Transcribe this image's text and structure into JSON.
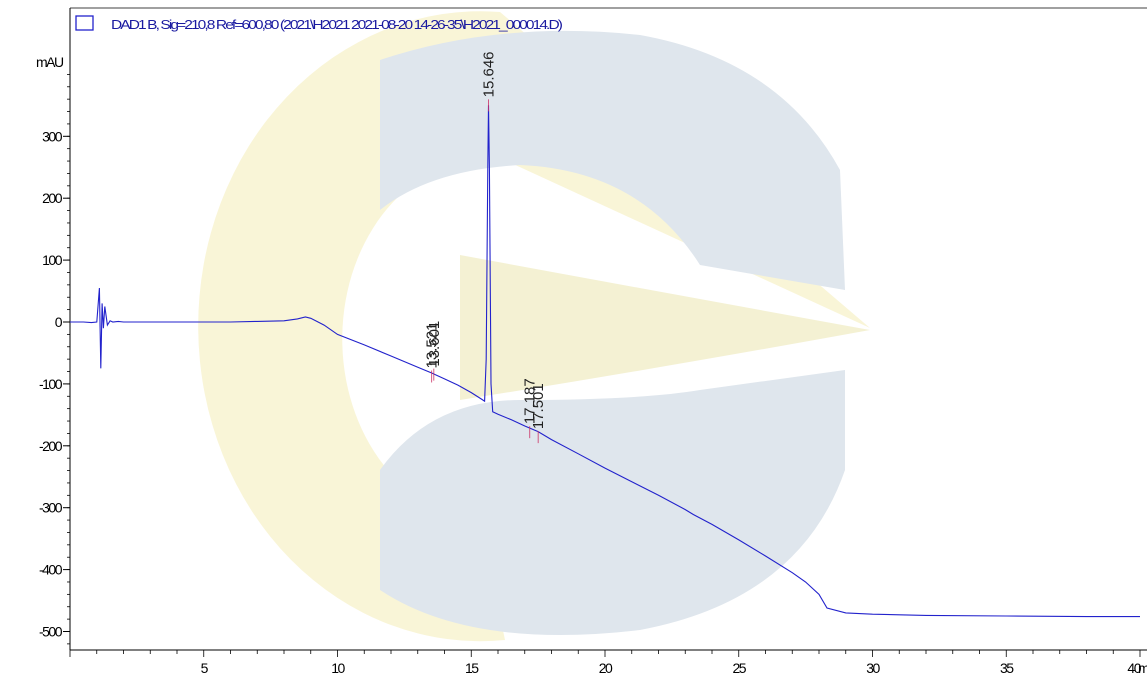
{
  "legend": {
    "label": "DAD1 B, Sig=210,8 Ref=600,80 (2021\\H2021 2021-08-20 14-26-35\\H2021_000014.D)"
  },
  "colors": {
    "trace": "#2222cc",
    "axis": "#000000",
    "watermark_yellow": "#f7f3d2",
    "watermark_blue": "#dde5ec",
    "baseline_marker": "#cc3366"
  },
  "chart_data": {
    "type": "line",
    "title": "",
    "xlabel": "min",
    "ylabel": "mAU",
    "xlim": [
      0,
      40
    ],
    "ylim": [
      -520,
      410
    ],
    "x_ticks": [
      "5",
      "10",
      "15",
      "20",
      "25",
      "30",
      "35",
      "40"
    ],
    "x_tick_values": [
      5,
      10,
      15,
      20,
      25,
      30,
      35,
      40
    ],
    "y_ticks": [
      "300",
      "200",
      "100",
      "0",
      "-100",
      "-200",
      "-300",
      "-400",
      "-500"
    ],
    "y_tick_values": [
      300,
      200,
      100,
      0,
      -100,
      -200,
      -300,
      -400,
      -500
    ],
    "y_unit_label": "mAU",
    "x_unit_label": "min",
    "grid": false,
    "series": [
      {
        "x": [
          0,
          0.5,
          0.8,
          1.0,
          1.1,
          1.15,
          1.2,
          1.25,
          1.3,
          1.4,
          1.5,
          1.6,
          1.8,
          2.0,
          2.5,
          3,
          4,
          5,
          6,
          7,
          8,
          8.5,
          8.8,
          9.0,
          9.5,
          10,
          11,
          12,
          13,
          13.5,
          14,
          14.5,
          15,
          15.4,
          15.5,
          15.56,
          15.62,
          15.646,
          15.68,
          15.74,
          15.8,
          16,
          16.5,
          17,
          17.5,
          18,
          19,
          20,
          21,
          22,
          23,
          23.3,
          24,
          25,
          26,
          27,
          27.5,
          28,
          28.3,
          29,
          30,
          32,
          35,
          38,
          40
        ],
        "y": [
          0,
          0,
          -1,
          0,
          55,
          -75,
          30,
          -10,
          25,
          -5,
          2,
          0,
          1,
          0,
          0,
          0,
          0,
          0,
          0,
          1,
          2,
          5,
          8,
          6,
          -5,
          -20,
          -37,
          -55,
          -73,
          -82,
          -92,
          -102,
          -114,
          -125,
          -128,
          -60,
          250,
          350,
          250,
          -100,
          -145,
          -149,
          -158,
          -168,
          -177,
          -190,
          -213,
          -236,
          -258,
          -280,
          -303,
          -311,
          -327,
          -352,
          -378,
          -405,
          -420,
          -440,
          -462,
          -470,
          -472,
          -474,
          -475,
          -476,
          -476
        ]
      }
    ],
    "peak_labels": [
      {
        "text": "13.521",
        "x": 13.521,
        "y": -88
      },
      {
        "text": "13.601",
        "x": 13.601,
        "y": -85
      },
      {
        "text": "15.646",
        "x": 15.646,
        "y": 350
      },
      {
        "text": "17.187",
        "x": 17.187,
        "y": -178
      },
      {
        "text": "17.501",
        "x": 17.501,
        "y": -186
      }
    ]
  }
}
